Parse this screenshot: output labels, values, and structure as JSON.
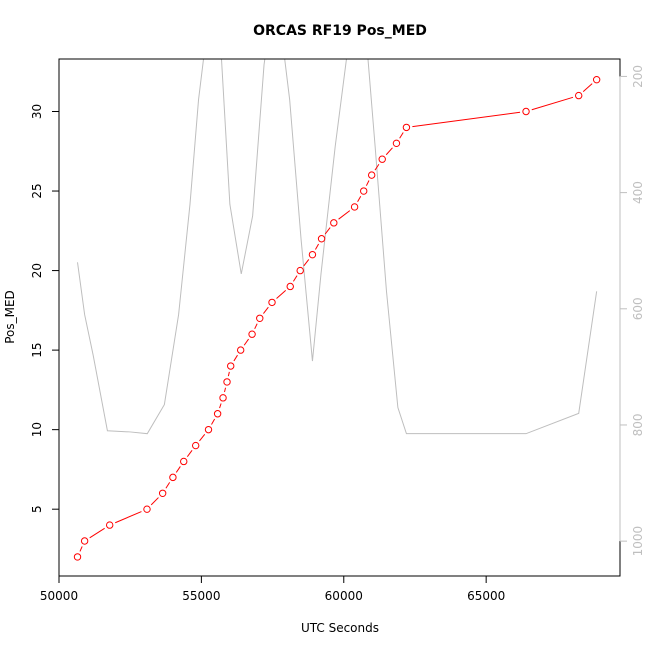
{
  "chart_data": {
    "type": "line",
    "title": "ORCAS RF19 Pos_MED",
    "xlabel": "UTC Seconds",
    "ylabel": "Pos_MED",
    "xlim": [
      50000,
      69700
    ],
    "ylim": [
      0.8,
      33.3
    ],
    "y2lim": [
      1060,
      170
    ],
    "x_ticks": [
      50000,
      55000,
      60000,
      65000
    ],
    "y_ticks": [
      5,
      10,
      15,
      20,
      25,
      30
    ],
    "y2_ticks": [
      200,
      400,
      600,
      800,
      1000
    ],
    "grid": false,
    "series": [
      {
        "axis": "left",
        "color": "#ff0000",
        "marker": "open-circle",
        "x": [
          50650,
          50900,
          51780,
          53090,
          53640,
          54000,
          54380,
          54800,
          55250,
          55570,
          55760,
          55900,
          56030,
          56380,
          56780,
          57050,
          57480,
          58120,
          58470,
          58900,
          59220,
          59650,
          60380,
          60700,
          60980,
          61350,
          61850,
          62200,
          66400,
          68250,
          68880
        ],
        "y": [
          2,
          3,
          4,
          5,
          6,
          7,
          8,
          9,
          10,
          11,
          12,
          13,
          14,
          15,
          16,
          17,
          18,
          19,
          20,
          21,
          22,
          23,
          24,
          25,
          26,
          27,
          28,
          29,
          30,
          31,
          32
        ]
      },
      {
        "axis": "right",
        "color": "#bebebe",
        "marker": "none",
        "x": [
          50650,
          50900,
          51200,
          51700,
          52500,
          53100,
          53700,
          54200,
          54600,
          54900,
          55200,
          55600,
          56000,
          56400,
          56800,
          57200,
          57600,
          58100,
          58500,
          58900,
          59200,
          59700,
          60200,
          60700,
          61100,
          61500,
          61900,
          62200,
          63500,
          66400,
          68250,
          68880
        ],
        "y": [
          520,
          610,
          680,
          810,
          812,
          815,
          765,
          610,
          420,
          240,
          120,
          80,
          420,
          540,
          440,
          180,
          40,
          240,
          480,
          690,
          540,
          320,
          130,
          80,
          320,
          570,
          770,
          815,
          815,
          815,
          780,
          570
        ]
      }
    ]
  }
}
